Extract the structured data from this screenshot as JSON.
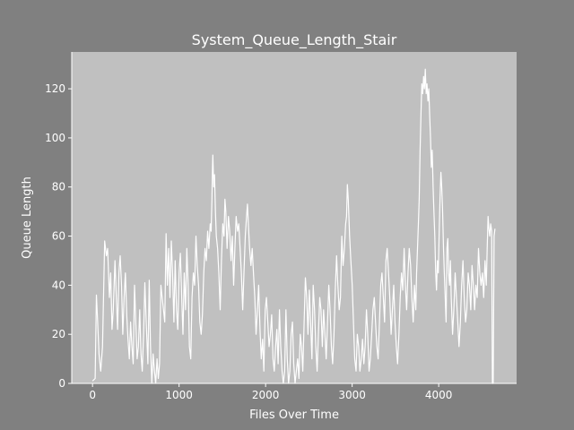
{
  "chart_data": {
    "type": "line",
    "title": "System_Queue_Length_Stair",
    "xlabel": "Files Over Time",
    "ylabel": "Queue Length",
    "xlim": [
      -240,
      4900
    ],
    "ylim": [
      0,
      135
    ],
    "xticks": [
      0,
      1000,
      2000,
      3000,
      4000
    ],
    "yticks": [
      0,
      20,
      40,
      60,
      80,
      100,
      120
    ],
    "grid": false,
    "colors": {
      "figure_bg": "#808080",
      "axes_bg": "#c0c0c0",
      "line": "#ffffff",
      "text": "#ffffff"
    },
    "series": [
      {
        "name": "",
        "points": [
          [
            0,
            1
          ],
          [
            30,
            2
          ],
          [
            45,
            36
          ],
          [
            60,
            25
          ],
          [
            75,
            12
          ],
          [
            95,
            5
          ],
          [
            115,
            15
          ],
          [
            140,
            58
          ],
          [
            160,
            52
          ],
          [
            175,
            55
          ],
          [
            195,
            35
          ],
          [
            210,
            45
          ],
          [
            225,
            22
          ],
          [
            240,
            30
          ],
          [
            260,
            50
          ],
          [
            275,
            35
          ],
          [
            290,
            22
          ],
          [
            305,
            45
          ],
          [
            320,
            52
          ],
          [
            335,
            40
          ],
          [
            350,
            20
          ],
          [
            365,
            35
          ],
          [
            380,
            45
          ],
          [
            395,
            28
          ],
          [
            410,
            18
          ],
          [
            425,
            10
          ],
          [
            440,
            25
          ],
          [
            455,
            15
          ],
          [
            470,
            8
          ],
          [
            485,
            40
          ],
          [
            500,
            25
          ],
          [
            515,
            10
          ],
          [
            530,
            15
          ],
          [
            545,
            30
          ],
          [
            560,
            12
          ],
          [
            575,
            5
          ],
          [
            590,
            20
          ],
          [
            605,
            41
          ],
          [
            620,
            25
          ],
          [
            640,
            8
          ],
          [
            655,
            42
          ],
          [
            670,
            15
          ],
          [
            685,
            0
          ],
          [
            700,
            12
          ],
          [
            715,
            5
          ],
          [
            730,
            0
          ],
          [
            745,
            10
          ],
          [
            760,
            2
          ],
          [
            775,
            8
          ],
          [
            790,
            40
          ],
          [
            805,
            35
          ],
          [
            820,
            30
          ],
          [
            835,
            25
          ],
          [
            850,
            61
          ],
          [
            865,
            40
          ],
          [
            880,
            55
          ],
          [
            895,
            35
          ],
          [
            910,
            58
          ],
          [
            925,
            45
          ],
          [
            940,
            25
          ],
          [
            955,
            50
          ],
          [
            970,
            30
          ],
          [
            985,
            22
          ],
          [
            1000,
            45
          ],
          [
            1015,
            53
          ],
          [
            1030,
            35
          ],
          [
            1045,
            20
          ],
          [
            1060,
            45
          ],
          [
            1075,
            30
          ],
          [
            1090,
            55
          ],
          [
            1105,
            40
          ],
          [
            1120,
            15
          ],
          [
            1135,
            10
          ],
          [
            1150,
            35
          ],
          [
            1165,
            45
          ],
          [
            1180,
            40
          ],
          [
            1195,
            60
          ],
          [
            1210,
            48
          ],
          [
            1225,
            40
          ],
          [
            1240,
            25
          ],
          [
            1255,
            20
          ],
          [
            1270,
            28
          ],
          [
            1285,
            45
          ],
          [
            1300,
            55
          ],
          [
            1315,
            50
          ],
          [
            1330,
            62
          ],
          [
            1345,
            55
          ],
          [
            1360,
            65
          ],
          [
            1370,
            62
          ],
          [
            1380,
            75
          ],
          [
            1385,
            86
          ],
          [
            1390,
            93
          ],
          [
            1400,
            80
          ],
          [
            1410,
            85
          ],
          [
            1420,
            70
          ],
          [
            1430,
            60
          ],
          [
            1445,
            55
          ],
          [
            1460,
            45
          ],
          [
            1475,
            30
          ],
          [
            1490,
            50
          ],
          [
            1505,
            65
          ],
          [
            1520,
            60
          ],
          [
            1530,
            75
          ],
          [
            1540,
            70
          ],
          [
            1555,
            55
          ],
          [
            1570,
            68
          ],
          [
            1585,
            62
          ],
          [
            1600,
            50
          ],
          [
            1615,
            60
          ],
          [
            1630,
            40
          ],
          [
            1645,
            55
          ],
          [
            1660,
            68
          ],
          [
            1675,
            62
          ],
          [
            1690,
            65
          ],
          [
            1705,
            55
          ],
          [
            1720,
            45
          ],
          [
            1735,
            30
          ],
          [
            1750,
            45
          ],
          [
            1765,
            60
          ],
          [
            1780,
            68
          ],
          [
            1790,
            73
          ],
          [
            1800,
            65
          ],
          [
            1815,
            55
          ],
          [
            1830,
            48
          ],
          [
            1845,
            55
          ],
          [
            1860,
            45
          ],
          [
            1875,
            35
          ],
          [
            1890,
            20
          ],
          [
            1905,
            30
          ],
          [
            1920,
            40
          ],
          [
            1935,
            22
          ],
          [
            1950,
            10
          ],
          [
            1965,
            18
          ],
          [
            1980,
            5
          ],
          [
            1995,
            30
          ],
          [
            2010,
            35
          ],
          [
            2025,
            25
          ],
          [
            2040,
            15
          ],
          [
            2055,
            20
          ],
          [
            2070,
            28
          ],
          [
            2085,
            10
          ],
          [
            2100,
            5
          ],
          [
            2115,
            15
          ],
          [
            2130,
            22
          ],
          [
            2145,
            8
          ],
          [
            2160,
            30
          ],
          [
            2175,
            15
          ],
          [
            2190,
            5
          ],
          [
            2205,
            0
          ],
          [
            2220,
            5
          ],
          [
            2235,
            30
          ],
          [
            2250,
            10
          ],
          [
            2265,
            0
          ],
          [
            2280,
            5
          ],
          [
            2295,
            20
          ],
          [
            2310,
            25
          ],
          [
            2325,
            8
          ],
          [
            2340,
            0
          ],
          [
            2355,
            5
          ],
          [
            2370,
            10
          ],
          [
            2385,
            2
          ],
          [
            2400,
            20
          ],
          [
            2415,
            15
          ],
          [
            2430,
            5
          ],
          [
            2445,
            25
          ],
          [
            2460,
            43
          ],
          [
            2475,
            35
          ],
          [
            2490,
            20
          ],
          [
            2505,
            38
          ],
          [
            2520,
            25
          ],
          [
            2535,
            10
          ],
          [
            2550,
            40
          ],
          [
            2565,
            30
          ],
          [
            2580,
            15
          ],
          [
            2595,
            5
          ],
          [
            2610,
            20
          ],
          [
            2625,
            35
          ],
          [
            2640,
            30
          ],
          [
            2655,
            15
          ],
          [
            2670,
            30
          ],
          [
            2685,
            20
          ],
          [
            2700,
            10
          ],
          [
            2715,
            25
          ],
          [
            2730,
            40
          ],
          [
            2745,
            30
          ],
          [
            2760,
            15
          ],
          [
            2775,
            8
          ],
          [
            2790,
            20
          ],
          [
            2805,
            38
          ],
          [
            2820,
            52
          ],
          [
            2835,
            40
          ],
          [
            2850,
            30
          ],
          [
            2865,
            35
          ],
          [
            2880,
            60
          ],
          [
            2895,
            48
          ],
          [
            2910,
            55
          ],
          [
            2925,
            65
          ],
          [
            2935,
            68
          ],
          [
            2945,
            81
          ],
          [
            2955,
            75
          ],
          [
            2970,
            60
          ],
          [
            2985,
            50
          ],
          [
            3000,
            40
          ],
          [
            3015,
            25
          ],
          [
            3030,
            10
          ],
          [
            3045,
            5
          ],
          [
            3060,
            20
          ],
          [
            3075,
            15
          ],
          [
            3090,
            5
          ],
          [
            3105,
            10
          ],
          [
            3120,
            18
          ],
          [
            3135,
            8
          ],
          [
            3150,
            15
          ],
          [
            3165,
            30
          ],
          [
            3180,
            20
          ],
          [
            3195,
            5
          ],
          [
            3210,
            10
          ],
          [
            3225,
            20
          ],
          [
            3240,
            30
          ],
          [
            3255,
            35
          ],
          [
            3270,
            25
          ],
          [
            3285,
            15
          ],
          [
            3300,
            10
          ],
          [
            3315,
            25
          ],
          [
            3330,
            40
          ],
          [
            3345,
            45
          ],
          [
            3360,
            35
          ],
          [
            3375,
            25
          ],
          [
            3390,
            50
          ],
          [
            3405,
            55
          ],
          [
            3420,
            45
          ],
          [
            3435,
            35
          ],
          [
            3450,
            20
          ],
          [
            3465,
            30
          ],
          [
            3480,
            40
          ],
          [
            3495,
            25
          ],
          [
            3510,
            15
          ],
          [
            3525,
            8
          ],
          [
            3540,
            20
          ],
          [
            3555,
            35
          ],
          [
            3570,
            45
          ],
          [
            3585,
            38
          ],
          [
            3600,
            55
          ],
          [
            3615,
            40
          ],
          [
            3630,
            30
          ],
          [
            3645,
            45
          ],
          [
            3660,
            55
          ],
          [
            3675,
            48
          ],
          [
            3690,
            35
          ],
          [
            3705,
            25
          ],
          [
            3720,
            40
          ],
          [
            3735,
            30
          ],
          [
            3745,
            45
          ],
          [
            3755,
            55
          ],
          [
            3765,
            65
          ],
          [
            3775,
            75
          ],
          [
            3785,
            95
          ],
          [
            3795,
            110
          ],
          [
            3805,
            122
          ],
          [
            3815,
            118
          ],
          [
            3825,
            125
          ],
          [
            3835,
            120
          ],
          [
            3845,
            128
          ],
          [
            3855,
            118
          ],
          [
            3865,
            122
          ],
          [
            3875,
            115
          ],
          [
            3885,
            120
          ],
          [
            3895,
            110
          ],
          [
            3905,
            100
          ],
          [
            3915,
            88
          ],
          [
            3925,
            95
          ],
          [
            3935,
            80
          ],
          [
            3945,
            70
          ],
          [
            3955,
            60
          ],
          [
            3965,
            45
          ],
          [
            3975,
            38
          ],
          [
            3985,
            50
          ],
          [
            3995,
            45
          ],
          [
            4005,
            60
          ],
          [
            4015,
            75
          ],
          [
            4025,
            86
          ],
          [
            4035,
            80
          ],
          [
            4045,
            70
          ],
          [
            4055,
            55
          ],
          [
            4065,
            45
          ],
          [
            4075,
            35
          ],
          [
            4085,
            25
          ],
          [
            4095,
            55
          ],
          [
            4105,
            59
          ],
          [
            4115,
            45
          ],
          [
            4125,
            40
          ],
          [
            4135,
            50
          ],
          [
            4145,
            35
          ],
          [
            4160,
            20
          ],
          [
            4175,
            30
          ],
          [
            4190,
            45
          ],
          [
            4205,
            35
          ],
          [
            4220,
            25
          ],
          [
            4235,
            15
          ],
          [
            4250,
            25
          ],
          [
            4265,
            40
          ],
          [
            4280,
            50
          ],
          [
            4295,
            35
          ],
          [
            4310,
            25
          ],
          [
            4325,
            30
          ],
          [
            4340,
            45
          ],
          [
            4355,
            40
          ],
          [
            4370,
            30
          ],
          [
            4385,
            48
          ],
          [
            4400,
            40
          ],
          [
            4415,
            30
          ],
          [
            4430,
            40
          ],
          [
            4445,
            35
          ],
          [
            4460,
            55
          ],
          [
            4475,
            45
          ],
          [
            4490,
            40
          ],
          [
            4505,
            45
          ],
          [
            4520,
            35
          ],
          [
            4535,
            50
          ],
          [
            4550,
            40
          ],
          [
            4560,
            55
          ],
          [
            4570,
            68
          ],
          [
            4580,
            63
          ],
          [
            4590,
            60
          ],
          [
            4600,
            65
          ],
          [
            4612,
            62
          ],
          [
            4620,
            0
          ],
          [
            4630,
            0
          ],
          [
            4640,
            60
          ],
          [
            4650,
            63
          ]
        ]
      }
    ]
  }
}
